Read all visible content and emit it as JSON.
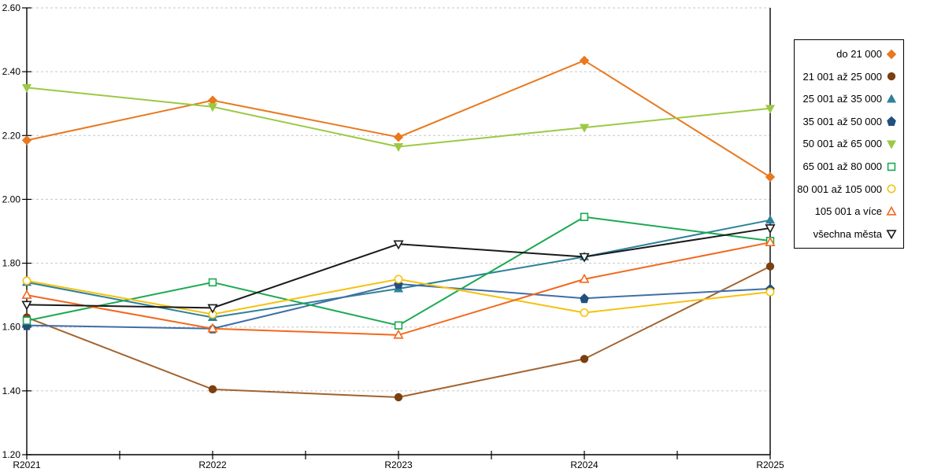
{
  "chart_data": {
    "type": "line",
    "title": "",
    "xlabel": "",
    "ylabel": "",
    "categories": [
      "R2021",
      "R2022",
      "R2023",
      "R2024",
      "R2025"
    ],
    "series": [
      {
        "name": "do 21 000",
        "color": "#E8791E",
        "marker": "diamond",
        "marker_fill": "filled",
        "marker_color": "#E8791E",
        "values": [
          2.185,
          2.31,
          2.195,
          2.435,
          2.07
        ]
      },
      {
        "name": "21 001 až 25 000",
        "color": "#A2632F",
        "marker": "circle",
        "marker_fill": "filled",
        "marker_color": "#7B3F10",
        "values": [
          1.63,
          1.405,
          1.38,
          1.5,
          1.79
        ]
      },
      {
        "name": "25 001 až 35 000",
        "color": "#2E8299",
        "marker": "triangle-up",
        "marker_fill": "filled",
        "marker_color": "#2E8299",
        "values": [
          1.74,
          1.63,
          1.72,
          1.82,
          1.935
        ]
      },
      {
        "name": "35 001 až 50 000",
        "color": "#3F6FA5",
        "marker": "pentagon",
        "marker_fill": "filled",
        "marker_color": "#234F7E",
        "values": [
          1.605,
          1.595,
          1.735,
          1.69,
          1.72
        ]
      },
      {
        "name": "50 001 až 65 000",
        "color": "#9CC944",
        "marker": "triangle-down",
        "marker_fill": "filled",
        "marker_color": "#9CC944",
        "values": [
          2.35,
          2.29,
          2.165,
          2.225,
          2.285
        ]
      },
      {
        "name": "65 001 až 80 000",
        "color": "#1CA953",
        "marker": "square",
        "marker_fill": "open",
        "marker_color": "#1CA953",
        "values": [
          1.62,
          1.74,
          1.605,
          1.945,
          1.87
        ]
      },
      {
        "name": "80 001 až 105 000",
        "color": "#F5C211",
        "marker": "circle",
        "marker_fill": "open",
        "marker_color": "#F5C211",
        "values": [
          1.745,
          1.64,
          1.75,
          1.645,
          1.71
        ]
      },
      {
        "name": "105 001 a více",
        "color": "#F2681C",
        "marker": "triangle-up",
        "marker_fill": "open",
        "marker_color": "#F2681C",
        "values": [
          1.7,
          1.595,
          1.575,
          1.75,
          1.865
        ]
      },
      {
        "name": "všechna města",
        "color": "#1A1A1A",
        "marker": "triangle-down",
        "marker_fill": "open",
        "marker_color": "#1A1A1A",
        "values": [
          1.67,
          1.66,
          1.86,
          1.82,
          1.91
        ]
      }
    ],
    "ylim": [
      1.2,
      2.6
    ],
    "ytick_step": 0.2,
    "ytick_labels": [
      "1.20",
      "1.40",
      "1.60",
      "1.80",
      "2.00",
      "2.20",
      "2.40",
      "2.60"
    ],
    "grid": "horizontal-dashed",
    "gridline_color": "#C6C6C6",
    "axis_color": "#000000",
    "legend_position": "right"
  }
}
